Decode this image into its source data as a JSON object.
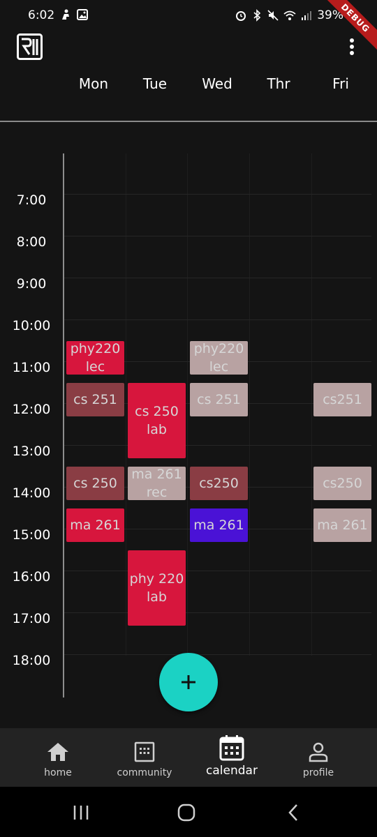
{
  "status_bar": {
    "time": "6:02",
    "battery": "39%",
    "debug": "DEBUG",
    "left_icons": [
      "pocket-icon",
      "gallery-icon"
    ],
    "right_icons": [
      "alarm-icon",
      "bluetooth-icon",
      "mute-icon",
      "wifi-icon",
      "signal-icon"
    ]
  },
  "app_bar": {
    "logo_icon": "app-logo-icon",
    "menu_icon": "more-vert-icon"
  },
  "days": [
    "Mon",
    "Tue",
    "Wed",
    "Thr",
    "Fri"
  ],
  "hours": [
    "7:00",
    "8:00",
    "9:00",
    "10:00",
    "11:00",
    "12:00",
    "13:00",
    "14:00",
    "15:00",
    "16:00",
    "17:00",
    "18:00"
  ],
  "events": [
    {
      "label": "phy220\nlec",
      "day": 0,
      "start": 10.5,
      "end": 11.5,
      "color": "#d7163d"
    },
    {
      "label": "cs 251",
      "day": 0,
      "start": 11.5,
      "end": 12.5,
      "color": "#8a3d44"
    },
    {
      "label": "cs 250",
      "day": 0,
      "start": 13.5,
      "end": 14.5,
      "color": "#8a3d44"
    },
    {
      "label": "ma 261",
      "day": 0,
      "start": 14.5,
      "end": 15.5,
      "color": "#d7163d"
    },
    {
      "label": "cs 250\nlab",
      "day": 1,
      "start": 11.5,
      "end": 13.5,
      "color": "#d7163d"
    },
    {
      "label": "ma 261\nrec",
      "day": 1,
      "start": 13.5,
      "end": 14.5,
      "color": "#b8a2a2"
    },
    {
      "label": "phy 220\nlab",
      "day": 1,
      "start": 15.5,
      "end": 17.5,
      "color": "#d7163d"
    },
    {
      "label": "phy220\nlec",
      "day": 2,
      "start": 10.5,
      "end": 11.5,
      "color": "#b8a2a2"
    },
    {
      "label": "cs 251",
      "day": 2,
      "start": 11.5,
      "end": 12.5,
      "color": "#b8a2a2"
    },
    {
      "label": "cs250",
      "day": 2,
      "start": 13.5,
      "end": 14.5,
      "color": "#8a3d44"
    },
    {
      "label": "ma 261",
      "day": 2,
      "start": 14.5,
      "end": 15.5,
      "color": "#4a12d6"
    },
    {
      "label": "cs251",
      "day": 4,
      "start": 11.5,
      "end": 12.5,
      "color": "#b8a2a2"
    },
    {
      "label": "cs250",
      "day": 4,
      "start": 13.5,
      "end": 14.5,
      "color": "#b8a2a2"
    },
    {
      "label": "ma 261",
      "day": 4,
      "start": 14.5,
      "end": 15.5,
      "color": "#b8a2a2"
    }
  ],
  "fab": {
    "icon": "add-icon"
  },
  "nav": {
    "active": "calendar",
    "items": [
      {
        "id": "home",
        "label": "home",
        "icon": "home-icon"
      },
      {
        "id": "community",
        "label": "community",
        "icon": "community-icon"
      },
      {
        "id": "calendar",
        "label": "calendar",
        "icon": "calendar-icon"
      },
      {
        "id": "profile",
        "label": "profile",
        "icon": "profile-icon"
      }
    ]
  },
  "system_nav": [
    "recents-icon",
    "home-circle-icon",
    "back-icon"
  ],
  "colors": {
    "background": "#141414",
    "accent": "#1bd2c4",
    "nav_bg": "#232323",
    "event_red": "#d7163d",
    "event_maroon": "#8a3d44",
    "event_pink_gray": "#b8a2a2",
    "event_purple": "#4a12d6"
  }
}
